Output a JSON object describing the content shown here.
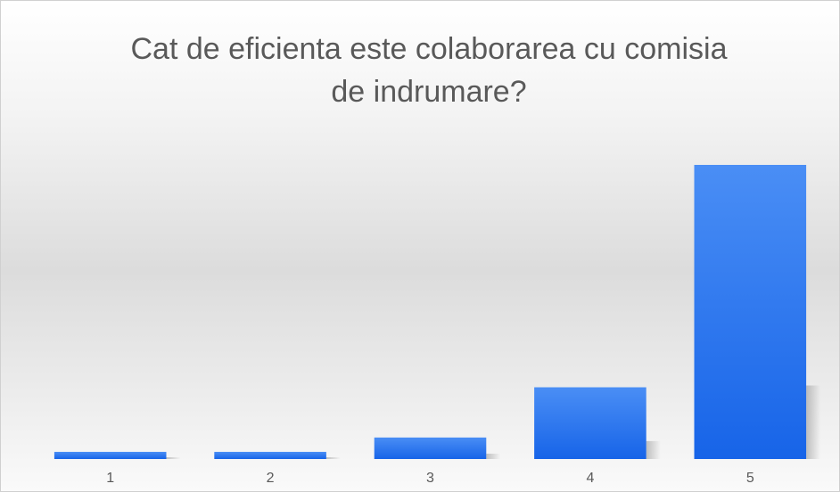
{
  "chart_data": {
    "type": "bar",
    "title": "Cat de eficienta este colaborarea cu comisia de indrumare?",
    "categories": [
      "1",
      "2",
      "3",
      "4",
      "5"
    ],
    "values": [
      1,
      1,
      3,
      10,
      41
    ],
    "color": "#2f7bf0"
  }
}
